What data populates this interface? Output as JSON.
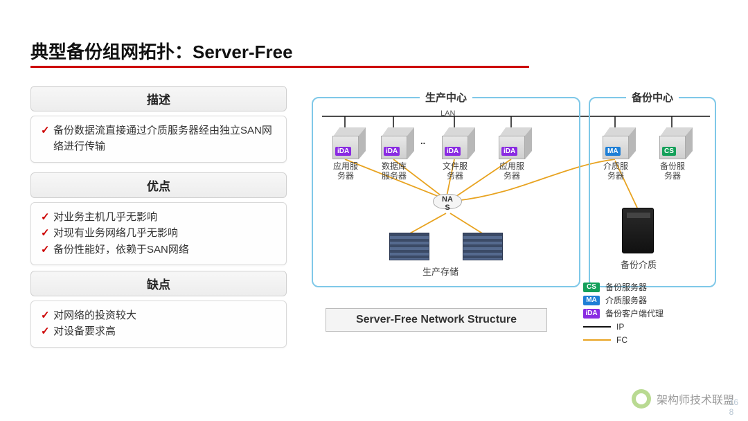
{
  "title": "典型备份组网拓扑：Server-Free",
  "sections": {
    "desc": {
      "header": "描述",
      "items": [
        "备份数据流直接通过介质服务器经由独立SAN网络进行传输"
      ]
    },
    "pros": {
      "header": "优点",
      "items": [
        "对业务主机几乎无影响",
        "对现有业务网络几乎无影响",
        "备份性能好，依赖于SAN网络"
      ]
    },
    "cons": {
      "header": "缺点",
      "items": [
        "对网络的投资较大",
        "对设备要求高"
      ]
    }
  },
  "diagram": {
    "production_label": "生产中心",
    "backup_label": "备份中心",
    "lan": "LAN",
    "servers": {
      "app1": {
        "tag": "iDA",
        "label": "应用服\n务器"
      },
      "db": {
        "tag": "iDA",
        "label": "数据库\n服务器"
      },
      "file": {
        "tag": "iDA",
        "label": "文件服\n务器"
      },
      "app2": {
        "tag": "iDA",
        "label": "应用服\n务器"
      },
      "media": {
        "tag": "MA",
        "label": "介质服\n务器"
      },
      "backup": {
        "tag": "CS",
        "label": "备份服\n务器"
      }
    },
    "nas": "NA\nS",
    "storage_label": "生产存储",
    "tape_label": "备份介质",
    "between_dots": ".."
  },
  "caption": "Server-Free  Network Structure",
  "legend": {
    "cs": {
      "swatch": "CS",
      "color": "#14a05a",
      "label": "备份服务器"
    },
    "ma": {
      "swatch": "MA",
      "color": "#1e7fd6",
      "label": "介质服务器"
    },
    "ida": {
      "swatch": "iDA",
      "color": "#8a2be2",
      "label": "备份客户端代理"
    },
    "ip": {
      "color": "#111111",
      "label": "IP"
    },
    "fc": {
      "color": "#e8a320",
      "label": "FC"
    }
  },
  "watermark": "架构师技术联盟",
  "page": "16\n8",
  "colors": {
    "accent_red": "#c00000",
    "box_border": "#7fc8e8"
  }
}
